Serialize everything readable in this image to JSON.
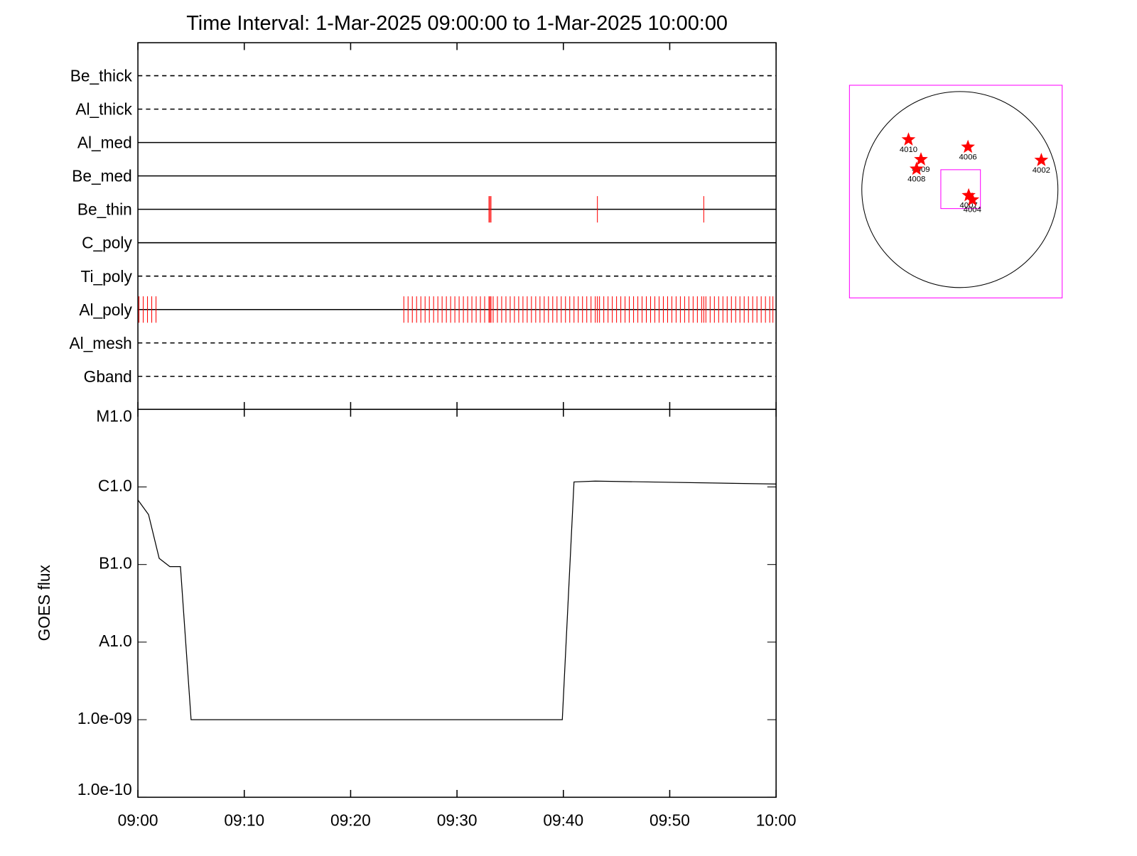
{
  "chart_data": [
    {
      "type": "event",
      "title": "Time Interval:  1-Mar-2025 09:00:00 to  1-Mar-2025 10:00:00",
      "xlim": [
        0,
        60
      ],
      "event_color": "#ff0000",
      "rows": [
        {
          "name": "Be_thick",
          "style": "dashed",
          "events": []
        },
        {
          "name": "Al_thick",
          "style": "dashed",
          "events": []
        },
        {
          "name": "Al_med",
          "style": "solid",
          "events": []
        },
        {
          "name": "Be_med",
          "style": "solid",
          "events": []
        },
        {
          "name": "Be_thin",
          "style": "solid",
          "events": [
            33.0,
            33.1,
            33.2,
            43.2,
            53.2
          ]
        },
        {
          "name": "C_poly",
          "style": "solid",
          "events": []
        },
        {
          "name": "Ti_poly",
          "style": "dashed",
          "events": []
        },
        {
          "name": "Al_poly",
          "style": "solid",
          "events": [
            0.1,
            0.5,
            0.9,
            1.3,
            1.7,
            25.0,
            25.4,
            25.8,
            26.2,
            26.6,
            27.0,
            27.4,
            27.8,
            28.2,
            28.6,
            29.0,
            29.4,
            29.8,
            30.2,
            30.6,
            31.0,
            31.4,
            31.8,
            32.2,
            32.6,
            33.0,
            33.1,
            33.2,
            33.4,
            33.8,
            34.2,
            34.6,
            35.0,
            35.4,
            35.8,
            36.2,
            36.6,
            37.0,
            37.4,
            37.8,
            38.2,
            38.6,
            39.0,
            39.4,
            39.8,
            40.2,
            40.6,
            41.0,
            41.4,
            41.8,
            42.2,
            42.6,
            43.0,
            43.2,
            43.4,
            43.8,
            44.2,
            44.6,
            45.0,
            45.4,
            45.8,
            46.2,
            46.6,
            47.0,
            47.4,
            47.8,
            48.2,
            48.6,
            49.0,
            49.4,
            49.8,
            50.2,
            50.6,
            51.0,
            51.4,
            51.8,
            52.2,
            52.6,
            53.0,
            53.2,
            53.4,
            53.8,
            54.2,
            54.6,
            55.0,
            55.4,
            55.8,
            56.2,
            56.6,
            57.0,
            57.4,
            57.8,
            58.2,
            58.6,
            59.0,
            59.4,
            59.7
          ]
        },
        {
          "name": "Al_mesh",
          "style": "dashed",
          "events": []
        },
        {
          "name": "Gband",
          "style": "dashed",
          "events": []
        }
      ]
    },
    {
      "type": "line",
      "y_label": "GOES flux",
      "log_y": true,
      "color": "#000000",
      "x": [
        0,
        1.0,
        2.0,
        3.0,
        4.0,
        5.0,
        39.9,
        41.0,
        43.0,
        60
      ],
      "values": [
        6.8e-07,
        4.4e-07,
        1.2e-07,
        9.4e-08,
        9.4e-08,
        1e-09,
        1e-09,
        1.16e-06,
        1.19e-06,
        1.09e-06
      ],
      "xlim": [
        0,
        60
      ],
      "xticks": [
        {
          "value": 0,
          "label": "09:00"
        },
        {
          "value": 10,
          "label": "09:10"
        },
        {
          "value": 20,
          "label": "09:20"
        },
        {
          "value": 30,
          "label": "09:30"
        },
        {
          "value": 40,
          "label": "09:40"
        },
        {
          "value": 50,
          "label": "09:50"
        },
        {
          "value": 60,
          "label": "10:00"
        }
      ],
      "ylim": [
        1e-10,
        1e-05
      ],
      "yticks": [
        {
          "value": 1e-05,
          "label": "M1.0"
        },
        {
          "value": 1e-06,
          "label": "C1.0"
        },
        {
          "value": 1e-07,
          "label": "B1.0"
        },
        {
          "value": 1e-08,
          "label": "A1.0"
        },
        {
          "value": 1e-09,
          "label": "1.0e-09"
        },
        {
          "value": 1e-10,
          "label": "1.0e-10"
        }
      ]
    },
    {
      "type": "map",
      "xlim": [
        -1090,
        1010
      ],
      "ylim": [
        -1070,
        1030
      ],
      "radius": 968,
      "frame_color": "#ff00ff",
      "star_color": "#ff0000",
      "fov": {
        "x": [
          -188,
          203
        ],
        "y": [
          -188,
          196
        ]
      },
      "points": [
        {
          "name": "4010",
          "x": -507,
          "y": 493
        },
        {
          "name": "4009",
          "x": -384,
          "y": 297
        },
        {
          "name": "4008",
          "x": -428,
          "y": 203
        },
        {
          "name": "4006",
          "x": 80,
          "y": 420
        },
        {
          "name": "4002",
          "x": 804,
          "y": 290
        },
        {
          "name": "4007",
          "x": 87,
          "y": -58
        },
        {
          "name": "4004",
          "x": 123,
          "y": -101
        }
      ]
    }
  ]
}
